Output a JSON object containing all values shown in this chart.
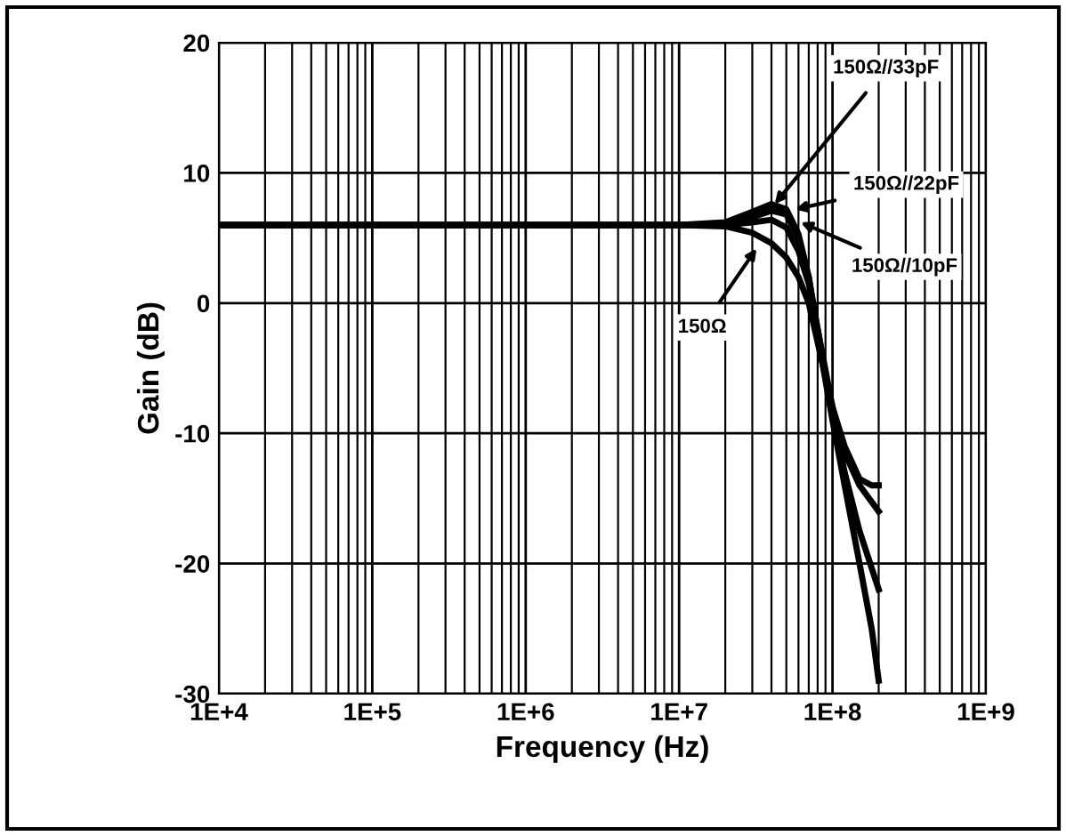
{
  "chart_data": {
    "type": "line",
    "xlabel": "Frequency (Hz)",
    "ylabel": "Gain (dB)",
    "log": "x",
    "grid": true,
    "line_style": "solid",
    "marker": "none",
    "xlim": [
      10000,
      1000000000
    ],
    "xticks": [
      {
        "value": 10000,
        "label": "1E+4"
      },
      {
        "value": 100000,
        "label": "1E+5"
      },
      {
        "value": 1000000,
        "label": "1E+6"
      },
      {
        "value": 10000000,
        "label": "1E+7"
      },
      {
        "value": 100000000,
        "label": "1E+8"
      },
      {
        "value": 1000000000,
        "label": "1E+9"
      }
    ],
    "ylim": [
      -30,
      20
    ],
    "yticks": [
      -30,
      -20,
      -10,
      0,
      10,
      20
    ],
    "series": [
      {
        "color": "#000000",
        "x": [
          10000,
          100000,
          1000000,
          10000000,
          20000000,
          30000000,
          40000000,
          50000000,
          60000000,
          70000000,
          80000000,
          100000000,
          120000000,
          150000000,
          180000000,
          200000000
        ],
        "values": [
          6,
          6,
          6,
          6,
          5.9,
          5.4,
          4.6,
          3.5,
          2,
          0,
          -3,
          -8,
          -11,
          -13.5,
          -14,
          -14
        ]
      },
      {
        "color": "#000000",
        "x": [
          10000,
          100000,
          1000000,
          10000000,
          20000000,
          30000000,
          40000000,
          50000000,
          60000000,
          70000000,
          80000000,
          100000000,
          120000000,
          150000000,
          200000000
        ],
        "values": [
          6,
          6,
          6,
          6,
          6,
          6.2,
          6.4,
          5.8,
          4,
          1.5,
          -2,
          -8,
          -11.5,
          -14,
          -16
        ]
      },
      {
        "color": "#000000",
        "x": [
          10000,
          100000,
          1000000,
          10000000,
          20000000,
          30000000,
          40000000,
          50000000,
          60000000,
          70000000,
          80000000,
          100000000,
          120000000,
          150000000,
          200000000
        ],
        "values": [
          6,
          6,
          6,
          6,
          6.1,
          6.6,
          7.1,
          6.8,
          5,
          2,
          -2,
          -8.5,
          -13,
          -17.5,
          -22
        ]
      },
      {
        "color": "#000000",
        "x": [
          10000,
          100000,
          1000000,
          10000000,
          20000000,
          30000000,
          40000000,
          50000000,
          60000000,
          70000000,
          80000000,
          100000000,
          120000000,
          150000000,
          180000000,
          200000000
        ],
        "values": [
          6,
          6,
          6,
          6,
          6.2,
          7,
          7.6,
          7.2,
          5.3,
          2,
          -2.5,
          -9,
          -14,
          -20,
          -25,
          -29
        ]
      }
    ],
    "annotations": [
      {
        "text": "150Ω",
        "x": 32000000,
        "y": 4.2
      },
      {
        "text": "150Ω//33pF",
        "x": 42000000,
        "y": 7.6
      },
      {
        "text": "150Ω//22pF",
        "x": 57000000,
        "y": 7.2
      },
      {
        "text": "150Ω//10pF",
        "x": 62000000,
        "y": 6.2
      }
    ]
  }
}
